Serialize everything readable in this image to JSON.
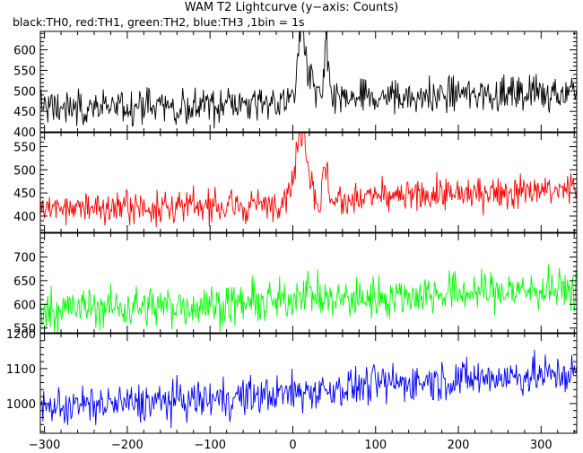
{
  "chart_data": {
    "type": "line",
    "title": "WAM T2 Lightcurve (y−axis: Counts)",
    "subtitle": "black:TH0, red:TH1, green:TH2, blue:TH3 ,1bin = 1s",
    "xlim": [
      -305,
      343
    ],
    "x_ticks": [
      -300,
      -200,
      -100,
      0,
      100,
      200,
      300
    ],
    "panels": [
      {
        "name": "TH0",
        "color": "#000000",
        "ylim": [
          400,
          645
        ],
        "y_ticks": [
          400,
          450,
          500,
          550,
          600
        ],
        "baseline": [
          [
            -305,
            460
          ],
          [
            -100,
            465
          ],
          [
            0,
            472
          ],
          [
            100,
            482
          ],
          [
            200,
            490
          ],
          [
            343,
            500
          ]
        ],
        "noise": 22,
        "features": [
          {
            "center": 10,
            "width": 4,
            "height": 160
          },
          {
            "center": 18,
            "width": 6,
            "height": 60
          },
          {
            "center": 40,
            "width": 2.5,
            "height": 130
          }
        ]
      },
      {
        "name": "TH1",
        "color": "#ff0000",
        "ylim": [
          365,
          580
        ],
        "y_ticks": [
          400,
          450,
          500,
          550
        ],
        "baseline": [
          [
            -305,
            415
          ],
          [
            -100,
            420
          ],
          [
            0,
            425
          ],
          [
            100,
            438
          ],
          [
            200,
            448
          ],
          [
            343,
            455
          ]
        ],
        "noise": 18,
        "features": [
          {
            "center": 12,
            "width": 6,
            "height": 130
          },
          {
            "center": 5,
            "width": 12,
            "height": 45
          },
          {
            "center": 40,
            "width": 3,
            "height": 70
          }
        ]
      },
      {
        "name": "TH2",
        "color": "#00ff00",
        "ylim": [
          540,
          750
        ],
        "y_ticks": [
          550,
          600,
          650,
          700
        ],
        "baseline": [
          [
            -305,
            590
          ],
          [
            -100,
            598
          ],
          [
            0,
            605
          ],
          [
            100,
            615
          ],
          [
            200,
            625
          ],
          [
            343,
            632
          ]
        ],
        "noise": 22,
        "features": [
          {
            "center": 12,
            "width": 10,
            "height": 25
          }
        ]
      },
      {
        "name": "TH3",
        "color": "#0000ff",
        "ylim": [
          915,
          1200
        ],
        "y_ticks": [
          1000,
          1100,
          1200
        ],
        "baseline": [
          [
            -305,
            990
          ],
          [
            -200,
            1000
          ],
          [
            -100,
            1012
          ],
          [
            0,
            1030
          ],
          [
            100,
            1055
          ],
          [
            200,
            1070
          ],
          [
            343,
            1085
          ]
        ],
        "noise": 28,
        "features": []
      }
    ]
  }
}
